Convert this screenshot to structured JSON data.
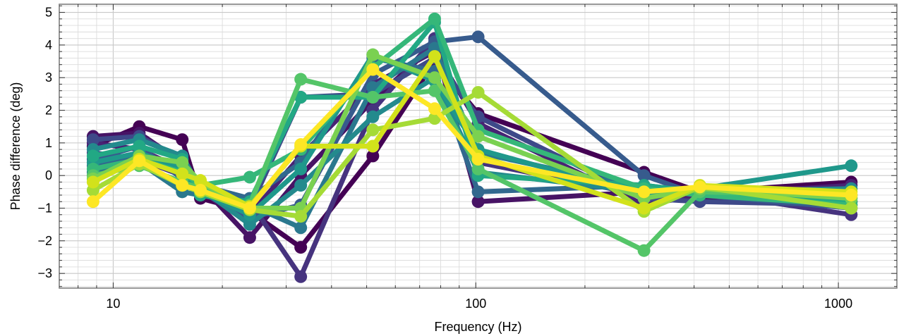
{
  "chart_data": {
    "type": "line",
    "xlabel": "Frequency (Hz)",
    "ylabel": "Phase difference (deg)",
    "xscale": "log",
    "xlim": [
      7.1,
      1450
    ],
    "ylim": [
      -3.45,
      5.25
    ],
    "xticks": [
      10,
      100,
      1000
    ],
    "xtick_labels": [
      "10",
      "100",
      "1000"
    ],
    "yticks": [
      -3,
      -2,
      -1,
      0,
      1,
      2,
      3,
      4,
      5
    ],
    "ytick_labels": [
      "−3",
      "−2",
      "−1",
      "0",
      "1",
      "2",
      "3",
      "4",
      "5"
    ],
    "grid": true,
    "legend": "none",
    "colormap": "viridis",
    "x": [
      8.8,
      11.8,
      15.5,
      17.4,
      23.8,
      32.9,
      52.0,
      77.0,
      101.5,
      291.0,
      415.0,
      1085.0
    ],
    "series": [
      {
        "color": "#440154",
        "values": [
          0.9,
          1.5,
          1.1,
          -0.7,
          -1.1,
          -2.2,
          0.6,
          3.5,
          1.9,
          0.1,
          -0.5,
          -0.2
        ]
      },
      {
        "color": "#471365",
        "values": [
          1.2,
          1.3,
          0.4,
          -0.3,
          -1.9,
          0.0,
          2.3,
          4.0,
          -0.8,
          -0.5,
          -0.7,
          -0.8
        ]
      },
      {
        "color": "#482374",
        "values": [
          1.0,
          0.8,
          0.2,
          -0.2,
          -1.2,
          0.6,
          2.8,
          3.8,
          1.6,
          -0.9,
          -0.6,
          -0.3
        ]
      },
      {
        "color": "#46337e",
        "values": [
          0.7,
          0.5,
          0.0,
          -0.6,
          -0.8,
          -3.1,
          2.0,
          4.2,
          0.4,
          -0.6,
          -0.5,
          -1.2
        ]
      },
      {
        "color": "#3e4989",
        "values": [
          1.1,
          1.2,
          0.5,
          -0.4,
          -1.0,
          2.4,
          2.5,
          3.6,
          1.8,
          -0.7,
          -0.8,
          -0.9
        ]
      },
      {
        "color": "#375b8d",
        "values": [
          0.5,
          0.9,
          -0.1,
          -0.5,
          -1.3,
          -0.9,
          3.1,
          4.1,
          4.25,
          0.0,
          -0.6,
          -1.0
        ]
      },
      {
        "color": "#31688e",
        "values": [
          0.3,
          0.6,
          0.3,
          -0.3,
          -0.7,
          0.4,
          3.6,
          3.2,
          -0.5,
          -0.3,
          -0.5,
          -0.7
        ]
      },
      {
        "color": "#2a788e",
        "values": [
          0.1,
          0.4,
          -0.5,
          -0.6,
          -0.9,
          -1.6,
          2.7,
          3.9,
          0.7,
          -0.4,
          -0.4,
          -0.6
        ]
      },
      {
        "color": "#238a8d",
        "values": [
          0.8,
          1.1,
          0.6,
          -0.4,
          -1.5,
          -0.3,
          1.8,
          3.0,
          0.1,
          -0.5,
          -0.5,
          -0.4
        ]
      },
      {
        "color": "#1f988b",
        "values": [
          0.4,
          0.7,
          0.2,
          -0.5,
          -1.2,
          0.2,
          3.7,
          2.9,
          0.8,
          -0.6,
          -0.4,
          0.3
        ]
      },
      {
        "color": "#22a884",
        "values": [
          0.6,
          0.9,
          0.5,
          -0.6,
          -0.8,
          2.4,
          2.4,
          4.7,
          0.0,
          -0.3,
          -0.5,
          -0.8
        ]
      },
      {
        "color": "#35b779",
        "values": [
          0.2,
          0.5,
          0.1,
          -0.3,
          -0.05,
          0.8,
          3.3,
          4.8,
          1.4,
          -0.4,
          -0.6,
          -0.9
        ]
      },
      {
        "color": "#54c568",
        "values": [
          0.0,
          0.3,
          -0.2,
          -0.4,
          -0.9,
          2.95,
          2.4,
          2.6,
          0.2,
          -2.3,
          -0.5,
          -0.6
        ]
      },
      {
        "color": "#7ad151",
        "values": [
          -0.1,
          0.6,
          0.4,
          -0.2,
          -1.0,
          -1.0,
          3.7,
          3.0,
          1.2,
          -0.7,
          -0.4,
          -0.7
        ]
      },
      {
        "color": "#a5db36",
        "values": [
          -0.45,
          0.35,
          -0.3,
          -0.5,
          -1.05,
          -1.25,
          1.4,
          1.75,
          2.55,
          -1.1,
          -0.35,
          -1.0
        ]
      },
      {
        "color": "#d2e21b",
        "values": [
          -0.2,
          0.5,
          0.05,
          -0.15,
          -0.95,
          0.9,
          0.9,
          3.65,
          0.6,
          -1.0,
          -0.3,
          -0.5
        ]
      },
      {
        "color": "#fde725",
        "values": [
          -0.8,
          0.45,
          -0.3,
          -0.45,
          -1.0,
          0.95,
          3.25,
          2.05,
          0.5,
          -0.5,
          -0.35,
          -0.6
        ]
      }
    ]
  }
}
